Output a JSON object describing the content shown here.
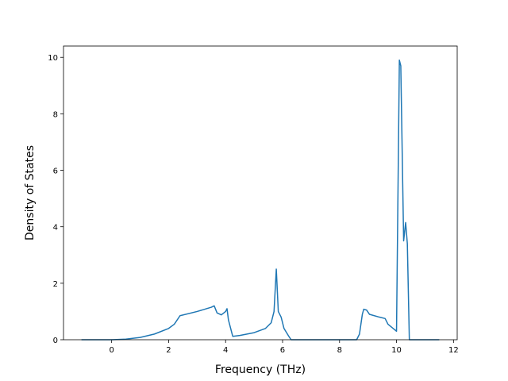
{
  "chart_data": {
    "type": "line",
    "xlabel": "Frequency (THz)",
    "ylabel": "Density of States",
    "x": [
      -1.06,
      0,
      0.5,
      1,
      1.5,
      2,
      2.2,
      2.4,
      3,
      3.5,
      3.6,
      3.7,
      3.85,
      4.0,
      4.05,
      4.1,
      4.25,
      4.5,
      5,
      5.4,
      5.6,
      5.7,
      5.78,
      5.85,
      5.95,
      6.05,
      6.2,
      6.3,
      8.6,
      8.7,
      8.8,
      8.85,
      8.95,
      9.05,
      9.4,
      9.6,
      9.7,
      10.0,
      10.1,
      10.15,
      10.25,
      10.32,
      10.38,
      10.45,
      11.5
    ],
    "series": [
      {
        "color": "#1f77b4",
        "values": [
          0,
          0,
          0.02,
          0.08,
          0.2,
          0.4,
          0.55,
          0.85,
          1.0,
          1.15,
          1.2,
          0.95,
          0.88,
          1.0,
          1.1,
          0.7,
          0.12,
          0.15,
          0.25,
          0.4,
          0.6,
          1.0,
          2.5,
          1.0,
          0.8,
          0.4,
          0.15,
          0,
          0,
          0.2,
          0.9,
          1.08,
          1.05,
          0.9,
          0.8,
          0.75,
          0.55,
          0.3,
          9.9,
          9.7,
          3.5,
          4.15,
          3.4,
          0,
          0
        ]
      }
    ],
    "xlim": [
      -1.69,
      12.13
    ],
    "ylim": [
      0,
      10.4
    ],
    "xticks": [
      0,
      2,
      4,
      6,
      8,
      10,
      12
    ],
    "yticks": [
      0,
      2,
      4,
      6,
      8,
      10
    ]
  }
}
